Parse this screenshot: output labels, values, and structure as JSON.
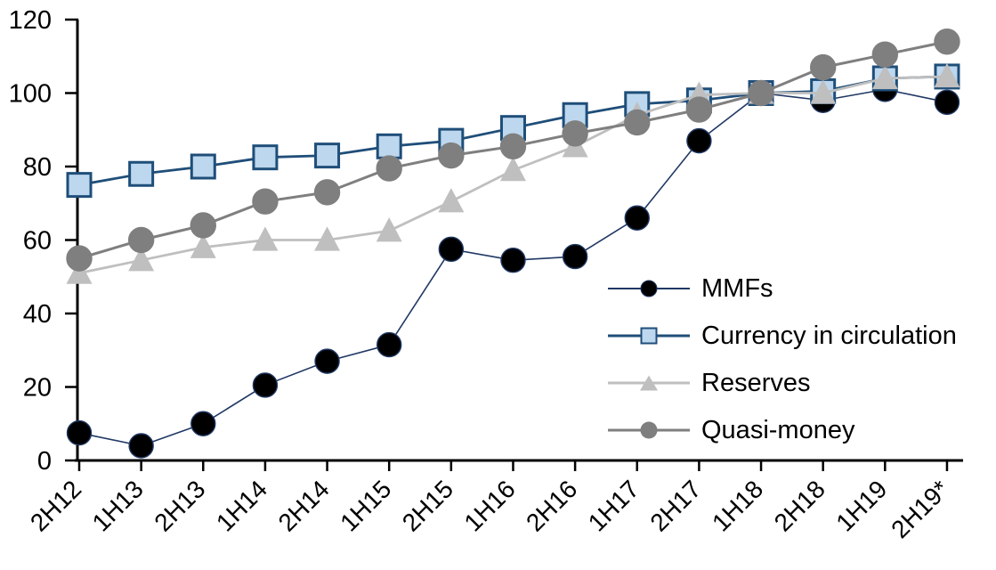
{
  "chart_data": {
    "type": "line",
    "title": "",
    "xlabel": "",
    "ylabel": "",
    "grid": false,
    "legend_position": "inside-right",
    "ylim": [
      0,
      120
    ],
    "y_ticks": [
      0,
      20,
      40,
      60,
      80,
      100,
      120
    ],
    "categories": [
      "2H12",
      "1H13",
      "2H13",
      "1H14",
      "2H14",
      "1H15",
      "2H15",
      "1H16",
      "2H16",
      "1H17",
      "2H17",
      "1H18",
      "2H18",
      "1H19",
      "2H19*"
    ],
    "series": [
      {
        "name": "MMFs",
        "values": [
          7.5,
          4,
          10,
          20.5,
          27,
          31.5,
          57.5,
          54.5,
          55.5,
          66,
          87,
          100,
          98,
          101,
          97.5
        ],
        "line_color": "#203864",
        "line_width": 1.6,
        "marker": "circle",
        "marker_fill": "#000000",
        "marker_edge": "#203864",
        "marker_size": 27
      },
      {
        "name": "Currency in circulation",
        "values": [
          75,
          78,
          80,
          82.5,
          83,
          85.5,
          87,
          90.5,
          94,
          97,
          98,
          100,
          100.5,
          104,
          104.5
        ],
        "line_color": "#1F4E79",
        "line_width": 2.8,
        "marker": "square",
        "marker_fill": "#BDD7EE",
        "marker_edge": "#1F4E79",
        "marker_size": 26
      },
      {
        "name": "Reserves",
        "values": [
          51,
          54.5,
          58,
          60,
          60,
          62.5,
          70.5,
          79,
          85.5,
          94,
          99.5,
          100,
          100,
          104,
          104.5
        ],
        "line_color": "#BFBFBF",
        "line_width": 2.8,
        "marker": "triangle",
        "marker_fill": "#BFBFBF",
        "marker_edge": "#BFBFBF",
        "marker_size": 29
      },
      {
        "name": "Quasi-money",
        "values": [
          55,
          60,
          64,
          70.5,
          73,
          79.5,
          83,
          85.5,
          89,
          92,
          95.5,
          100,
          107,
          110.5,
          114
        ],
        "line_color": "#7F7F7F",
        "line_width": 3,
        "marker": "circle",
        "marker_fill": "#7F7F7F",
        "marker_edge": "#7F7F7F",
        "marker_size": 28
      }
    ],
    "axis_color": "#000000"
  }
}
